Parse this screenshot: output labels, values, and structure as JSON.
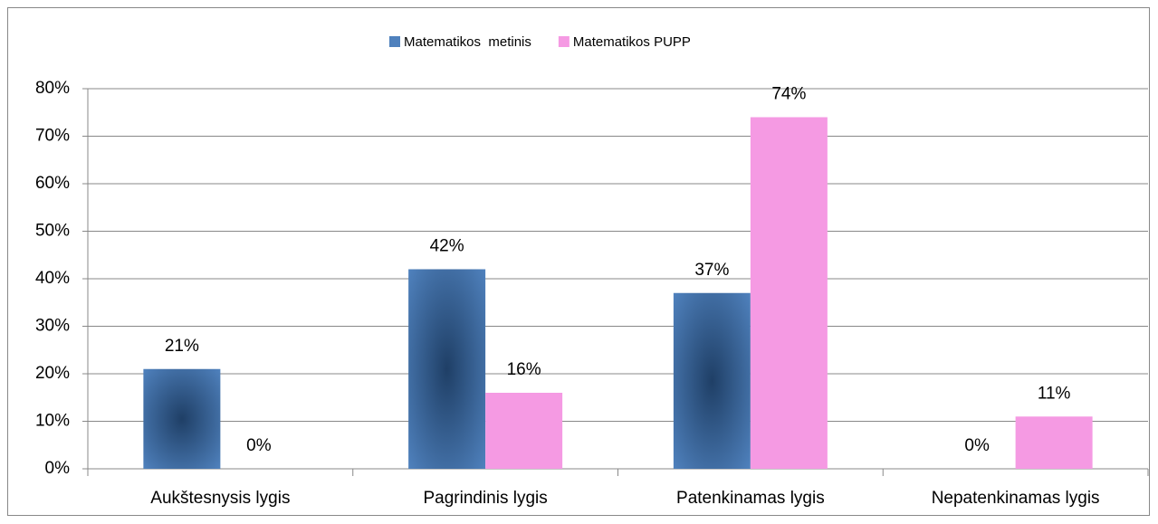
{
  "chart_data": {
    "type": "bar",
    "categories": [
      "Aukštesnysis lygis",
      "Pagrindinis lygis",
      "Patenkinamas lygis",
      "Nepatenkinamas lygis"
    ],
    "series": [
      {
        "name": "Matematikos  metinis",
        "color": "#4f81bd",
        "values": [
          21,
          42,
          37,
          0
        ],
        "value_labels": [
          "21%",
          "42%",
          "37%",
          "0%"
        ]
      },
      {
        "name": "Matematikos PUPP",
        "color": "#f59ae3",
        "values": [
          0,
          16,
          74,
          11
        ],
        "value_labels": [
          "0%",
          "16%",
          "74%",
          "11%"
        ]
      }
    ],
    "ylim": [
      0,
      80
    ],
    "yticks": [
      {
        "value": 0,
        "label": "0%"
      },
      {
        "value": 10,
        "label": "10%"
      },
      {
        "value": 20,
        "label": "20%"
      },
      {
        "value": 30,
        "label": "30%"
      },
      {
        "value": 40,
        "label": "40%"
      },
      {
        "value": 50,
        "label": "50%"
      },
      {
        "value": 60,
        "label": "60%"
      },
      {
        "value": 70,
        "label": "70%"
      },
      {
        "value": 80,
        "label": "80%"
      }
    ],
    "grid": true,
    "legend": "top"
  }
}
